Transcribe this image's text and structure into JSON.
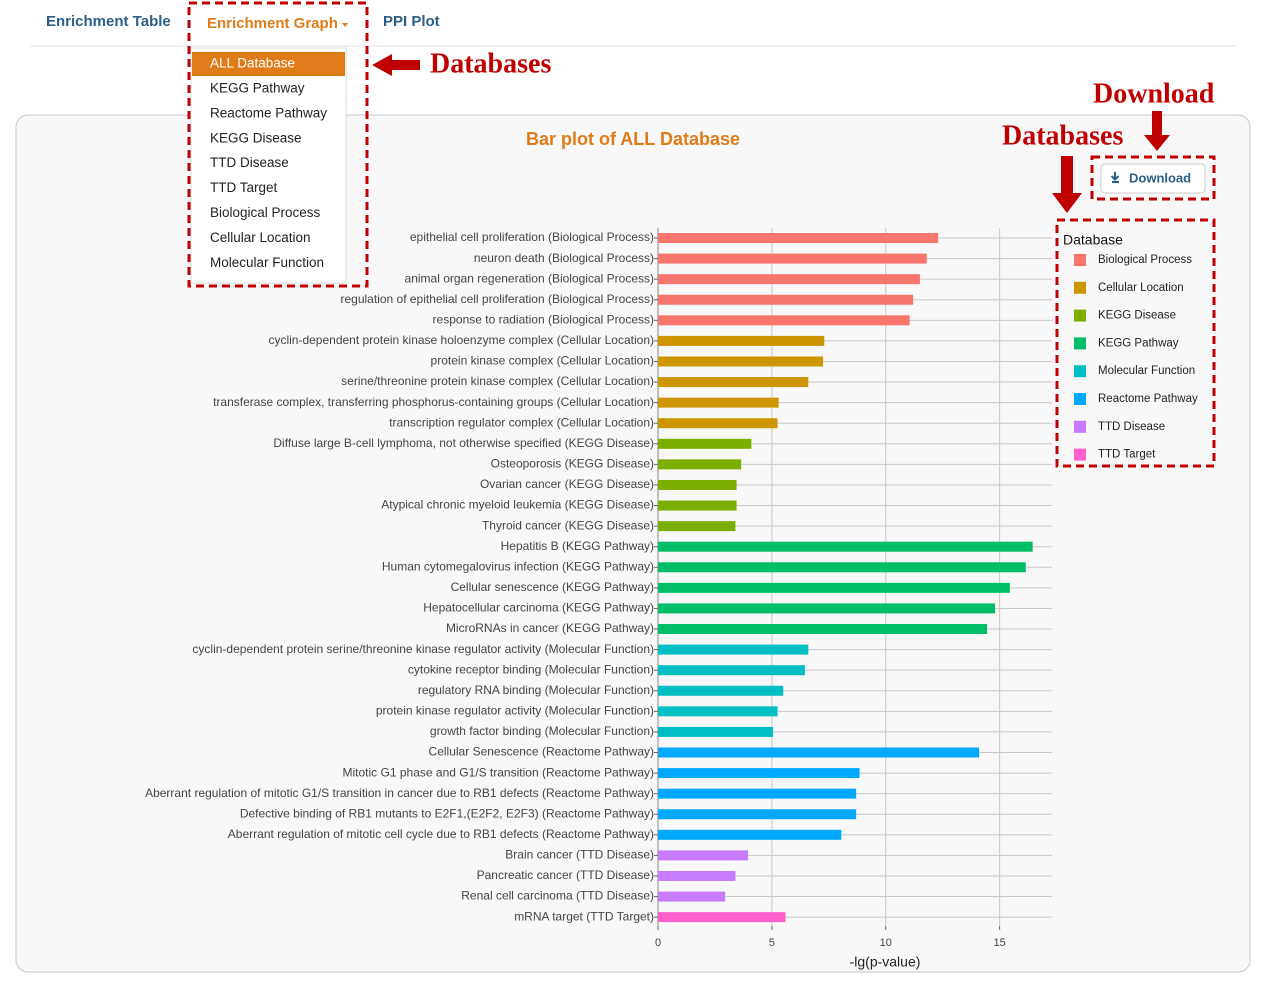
{
  "tabs": [
    "Enrichment Table",
    "Enrichment Graph",
    "PPI Plot"
  ],
  "dropdown": [
    "ALL Database",
    "KEGG Pathway",
    "Reactome Pathway",
    "KEGG Disease",
    "TTD Disease",
    "TTD Target",
    "Biological Process",
    "Cellular Location",
    "Molecular Function"
  ],
  "annotations": {
    "databases_menu": "Databases",
    "download": "Download",
    "databases_legend": "Databases"
  },
  "download_button": "Download",
  "chart_data": {
    "type": "barh",
    "title": "Bar plot of ALL Database",
    "xlabel": "-lg(p-value)",
    "legend_title": "Database",
    "xlim": [
      0,
      17.3
    ],
    "xticks": [
      0,
      5,
      10,
      15
    ],
    "grid": true,
    "series": [
      {
        "name": "Biological Process",
        "color": "#f8766d",
        "categories": [
          "epithelial cell proliferation (Biological Process)",
          "neuron death (Biological Process)",
          "animal organ regeneration (Biological Process)",
          "regulation of epithelial cell proliferation (Biological Process)",
          "response to radiation (Biological Process)"
        ],
        "values": [
          12.3,
          11.8,
          11.5,
          11.2,
          11.05
        ]
      },
      {
        "name": "Cellular Location",
        "color": "#cd9600",
        "categories": [
          "cyclin-dependent protein kinase holoenzyme complex (Cellular Location)",
          "protein kinase complex (Cellular Location)",
          "serine/threonine protein kinase complex (Cellular Location)",
          "transferase complex, transferring phosphorus-containing groups (Cellular Location)",
          "transcription regulator complex (Cellular Location)"
        ],
        "values": [
          7.3,
          7.25,
          6.6,
          5.3,
          5.25
        ]
      },
      {
        "name": "KEGG Disease",
        "color": "#7cae00",
        "categories": [
          "Diffuse large B-cell lymphoma, not otherwise specified (KEGG Disease)",
          "Osteoporosis (KEGG Disease)",
          "Ovarian cancer (KEGG Disease)",
          "Atypical chronic myeloid leukemia (KEGG Disease)",
          "Thyroid cancer (KEGG Disease)"
        ],
        "values": [
          4.1,
          3.65,
          3.45,
          3.45,
          3.4
        ]
      },
      {
        "name": "KEGG Pathway",
        "color": "#00be67",
        "categories": [
          "Hepatitis B (KEGG Pathway)",
          "Human cytomegalovirus infection (KEGG Pathway)",
          "Cellular senescence (KEGG Pathway)",
          "Hepatocellular carcinoma (KEGG Pathway)",
          "MicroRNAs in cancer (KEGG Pathway)"
        ],
        "values": [
          16.45,
          16.15,
          15.45,
          14.8,
          14.45
        ]
      },
      {
        "name": "Molecular Function",
        "color": "#00bfc4",
        "categories": [
          "cyclin-dependent protein serine/threonine kinase regulator activity (Molecular Function)",
          "cytokine receptor binding (Molecular Function)",
          "regulatory RNA binding (Molecular Function)",
          "protein kinase regulator activity (Molecular Function)",
          "growth factor binding (Molecular Function)"
        ],
        "values": [
          6.6,
          6.45,
          5.5,
          5.25,
          5.05
        ]
      },
      {
        "name": "Reactome Pathway",
        "color": "#00a9ff",
        "categories": [
          "Cellular Senescence (Reactome Pathway)",
          "Mitotic G1 phase and G1/S transition (Reactome Pathway)",
          "Aberrant regulation of mitotic G1/S transition in cancer due to RB1 defects (Reactome Pathway)",
          "Defective binding of RB1 mutants to E2F1,(E2F2, E2F3) (Reactome Pathway)",
          "Aberrant regulation of mitotic cell cycle due to RB1 defects (Reactome Pathway)"
        ],
        "values": [
          14.1,
          8.85,
          8.7,
          8.7,
          8.05
        ]
      },
      {
        "name": "TTD Disease",
        "color": "#c77cff",
        "categories": [
          "Brain cancer (TTD Disease)",
          "Pancreatic cancer (TTD Disease)",
          "Renal cell carcinoma (TTD Disease)"
        ],
        "values": [
          3.95,
          3.4,
          2.95
        ]
      },
      {
        "name": "TTD Target",
        "color": "#ff61cc",
        "categories": [
          "mRNA target (TTD Target)"
        ],
        "values": [
          5.6
        ]
      }
    ]
  }
}
